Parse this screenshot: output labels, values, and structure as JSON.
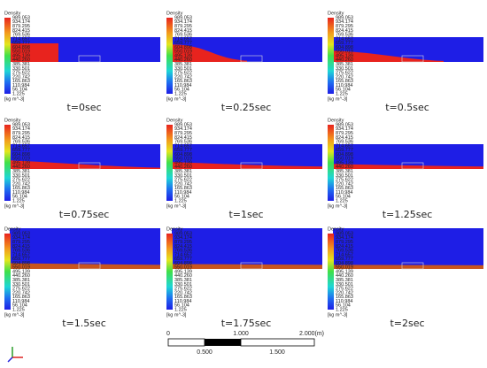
{
  "panels": [
    {
      "title": "Density",
      "time": "t=0sec"
    },
    {
      "title": "Density",
      "time": "t=0.25sec"
    },
    {
      "title": "Density",
      "time": "t=0.5sec"
    },
    {
      "title": "Density",
      "time": "t=0.75sec"
    },
    {
      "title": "Density",
      "time": "t=1sec"
    },
    {
      "title": "Density",
      "time": "t=1.25sec"
    },
    {
      "title": "Density",
      "time": "t=1.5sec"
    },
    {
      "title": "Density",
      "time": "t=1.75sec"
    },
    {
      "title": "Density",
      "time": "t=2sec"
    }
  ],
  "legend": {
    "values": [
      "989.053",
      "934.174",
      "879.295",
      "824.415",
      "769.536",
      "714.657",
      "659.777",
      "604.898",
      "550.019",
      "495.139",
      "440.260",
      "385.381",
      "330.501",
      "275.622",
      "220.742",
      "165.863",
      "110.984",
      "56.104",
      "1.225"
    ],
    "units": "[kg m^-3]"
  },
  "scale_bar": {
    "top_labels": [
      "0",
      "1.000",
      "2.000(m)"
    ],
    "bottom_labels": [
      "0.500",
      "1.500"
    ]
  }
}
